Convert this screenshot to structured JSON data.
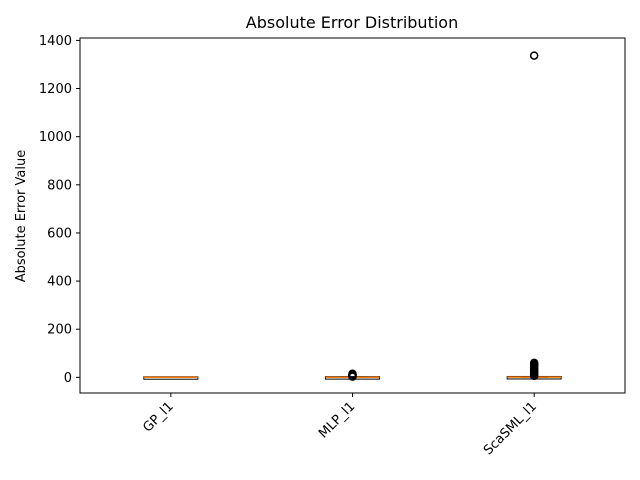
{
  "chart_data": {
    "type": "box",
    "title": "Absolute Error Distribution",
    "xlabel": "",
    "ylabel": "Absolute Error Value",
    "categories": [
      "GP_l1",
      "MLP_l1",
      "ScaSML_l1"
    ],
    "ylim": [
      -65,
      1410
    ],
    "yticks": [
      0,
      200,
      400,
      600,
      800,
      1000,
      1200,
      1400
    ],
    "ytick_labels": [
      "0",
      "200",
      "400",
      "600",
      "800",
      "1000",
      "1200",
      "1400"
    ],
    "xtick_rotation": 45,
    "grid": false,
    "colors": {
      "box": "#000000",
      "median": "#ff7f0e",
      "outlier": "#000000"
    },
    "boxes": [
      {
        "name": "GP_l1",
        "q1": 0.1,
        "median": 0.3,
        "q3": 0.6,
        "whisker_low": 0,
        "whisker_high": 1.2,
        "outliers": []
      },
      {
        "name": "MLP_l1",
        "q1": 0.2,
        "median": 0.5,
        "q3": 1.0,
        "whisker_low": 0,
        "whisker_high": 2.0,
        "outliers": [
          3,
          5,
          7,
          9,
          11,
          13,
          15
        ]
      },
      {
        "name": "ScaSML_l1",
        "q1": 0.3,
        "median": 0.8,
        "q3": 1.6,
        "whisker_low": 0,
        "whisker_high": 3.5,
        "outliers": [
          6,
          10,
          15,
          20,
          25,
          30,
          35,
          40,
          45,
          50,
          55,
          58,
          60,
          1337
        ]
      }
    ]
  }
}
